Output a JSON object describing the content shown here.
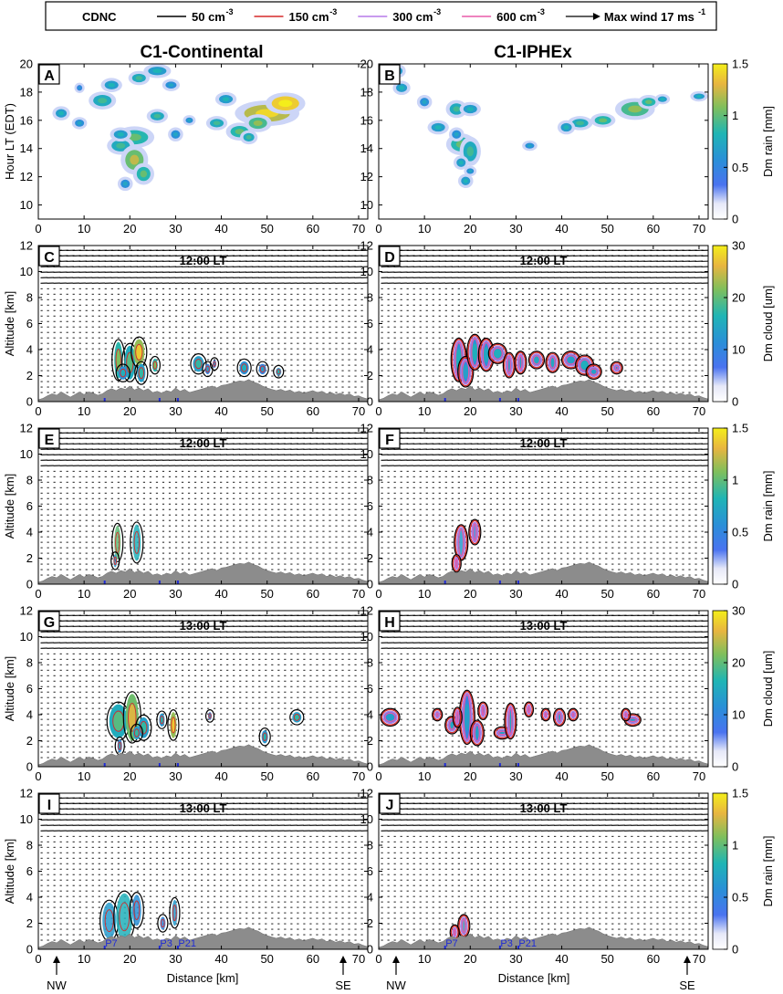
{
  "chart_data": {
    "type": "heatmap",
    "legend": {
      "title": "CDNC",
      "entries": [
        {
          "label": "50 cm",
          "exp": "-3",
          "color": "#000000"
        },
        {
          "label": "150 cm",
          "exp": "-3",
          "color": "#d62a2a"
        },
        {
          "label": "300 cm",
          "exp": "-3",
          "color": "#b57ae8"
        },
        {
          "label": "600 cm",
          "exp": "-3",
          "color": "#e85aa8"
        },
        {
          "label": "Max wind 17 ms",
          "exp": "-1",
          "color": "#000000"
        }
      ]
    },
    "column_titles": [
      "C1-Continental",
      "C1-IPHEx"
    ],
    "x_axis": {
      "label": "Distance [km]",
      "range": [
        0,
        72
      ],
      "ticks": [
        "0",
        "10",
        "20",
        "30",
        "40",
        "50",
        "60",
        "70"
      ]
    },
    "direction_labels": {
      "left": "NW",
      "right": "SE"
    },
    "sites": [
      {
        "name": "P7",
        "distance_km": 14.5
      },
      {
        "name": "P3",
        "distance_km": 26.5
      },
      {
        "name": "P21",
        "distance_km": 30.5
      }
    ],
    "panels": [
      {
        "letter": "A",
        "column": 0,
        "kind": "hovmoller",
        "ylabel": "Hour LT (EDT)",
        "yticks": [
          "10",
          "12",
          "14",
          "16",
          "18",
          "20"
        ],
        "ylim": [
          9,
          20
        ],
        "time": ""
      },
      {
        "letter": "B",
        "column": 1,
        "kind": "hovmoller",
        "ylabel": "",
        "yticks": [
          "10",
          "12",
          "14",
          "16",
          "18",
          "20"
        ],
        "ylim": [
          9,
          20
        ],
        "time": ""
      },
      {
        "letter": "C",
        "column": 0,
        "kind": "cloud",
        "ylabel": "Altitude [km]",
        "yticks": [
          "0",
          "2",
          "4",
          "6",
          "8",
          "10",
          "12"
        ],
        "ylim": [
          0,
          12
        ],
        "time": "12:00 LT"
      },
      {
        "letter": "D",
        "column": 1,
        "kind": "cloud",
        "ylabel": "",
        "yticks": [
          "0",
          "2",
          "4",
          "6",
          "8",
          "10",
          "12"
        ],
        "ylim": [
          0,
          12
        ],
        "time": "12:00 LT"
      },
      {
        "letter": "E",
        "column": 0,
        "kind": "rain",
        "ylabel": "Altitude [km]",
        "yticks": [
          "0",
          "2",
          "4",
          "6",
          "8",
          "10",
          "12"
        ],
        "ylim": [
          0,
          12
        ],
        "time": "12:00 LT"
      },
      {
        "letter": "F",
        "column": 1,
        "kind": "rain",
        "ylabel": "",
        "yticks": [
          "0",
          "2",
          "4",
          "6",
          "8",
          "10",
          "12"
        ],
        "ylim": [
          0,
          12
        ],
        "time": "12:00 LT"
      },
      {
        "letter": "G",
        "column": 0,
        "kind": "cloud",
        "ylabel": "Altitude [km]",
        "yticks": [
          "0",
          "2",
          "4",
          "6",
          "8",
          "10",
          "12"
        ],
        "ylim": [
          0,
          12
        ],
        "time": "13:00 LT"
      },
      {
        "letter": "H",
        "column": 1,
        "kind": "cloud",
        "ylabel": "",
        "yticks": [
          "0",
          "2",
          "4",
          "6",
          "8",
          "10",
          "12"
        ],
        "ylim": [
          0,
          12
        ],
        "time": "13:00 LT"
      },
      {
        "letter": "I",
        "column": 0,
        "kind": "rain",
        "ylabel": "Altitude [km]",
        "yticks": [
          "0",
          "2",
          "4",
          "6",
          "8",
          "10",
          "12"
        ],
        "ylim": [
          0,
          12
        ],
        "time": "13:00 LT"
      },
      {
        "letter": "J",
        "column": 1,
        "kind": "rain",
        "ylabel": "",
        "yticks": [
          "0",
          "2",
          "4",
          "6",
          "8",
          "10",
          "12"
        ],
        "ylim": [
          0,
          12
        ],
        "time": "13:00 LT"
      }
    ],
    "colorbars": [
      {
        "label": "Dm rain [mm]",
        "ticks": [
          "0",
          "0.5",
          "1",
          "1.5"
        ],
        "range": [
          0,
          1.5
        ]
      },
      {
        "label": "Dm cloud [um]",
        "ticks": [
          "0",
          "10",
          "20",
          "30"
        ],
        "range": [
          0,
          30
        ]
      },
      {
        "label": "Dm rain [mm]",
        "ticks": [
          "0",
          "0.5",
          "1",
          "1.5"
        ],
        "range": [
          0,
          1.5
        ]
      },
      {
        "label": "Dm cloud [um]",
        "ticks": [
          "0",
          "10",
          "20",
          "30"
        ],
        "range": [
          0,
          30
        ]
      },
      {
        "label": "Dm rain [mm]",
        "ticks": [
          "0",
          "0.5",
          "1",
          "1.5"
        ],
        "range": [
          0,
          1.5
        ]
      }
    ],
    "terrain_km": [
      0.15,
      0.25,
      0.45,
      0.6,
      0.5,
      0.75,
      0.55,
      0.35,
      0.55,
      0.75,
      0.55,
      0.75,
      0.65,
      0.5,
      0.6,
      0.85,
      1.0,
      0.85,
      1.05,
      0.95,
      1.2,
      0.9,
      1.05,
      0.85,
      1.0,
      0.7,
      0.8,
      0.65,
      0.85,
      0.75,
      1.05,
      0.8,
      0.95,
      0.7,
      0.8,
      0.9,
      1.0,
      1.1,
      1.2,
      1.05,
      1.25,
      1.3,
      1.4,
      1.5,
      1.6,
      1.55,
      1.7,
      1.5,
      1.4,
      1.2,
      1.05,
      0.95,
      0.85,
      0.95,
      0.8,
      0.9,
      0.7,
      0.8,
      0.65,
      0.75,
      0.85,
      0.7,
      0.8,
      0.6,
      0.7,
      0.55,
      0.65,
      0.5,
      0.6,
      0.4,
      0.45,
      0.3,
      0.2
    ],
    "features": {
      "A": [
        [
          5,
          16.5,
          1.2,
          0.3,
          0.4
        ],
        [
          9,
          15.8,
          1,
          0.25,
          0.3
        ],
        [
          14,
          17.4,
          2,
          0.4,
          0.5
        ],
        [
          16,
          18.5,
          1.5,
          0.3,
          0.4
        ],
        [
          22,
          19,
          1.5,
          0.3,
          0.5
        ],
        [
          26,
          19.5,
          2,
          0.3,
          0.4
        ],
        [
          29,
          18.5,
          1.2,
          0.25,
          0.3
        ],
        [
          21,
          14.8,
          3,
          0.5,
          0.6
        ],
        [
          18,
          14.2,
          2,
          0.4,
          0.5
        ],
        [
          21,
          13.2,
          2,
          0.7,
          0.8
        ],
        [
          23,
          12.2,
          1.5,
          0.5,
          0.6
        ],
        [
          19,
          11.5,
          1,
          0.3,
          0.3
        ],
        [
          18,
          15,
          1.5,
          0.3,
          0.4
        ],
        [
          26,
          16.3,
          1.5,
          0.3,
          0.5
        ],
        [
          30,
          15,
          1,
          0.3,
          0.3
        ],
        [
          39,
          15.8,
          1.5,
          0.3,
          0.5
        ],
        [
          44,
          15.2,
          2,
          0.4,
          0.6
        ],
        [
          50,
          16.5,
          5,
          0.6,
          1.0
        ],
        [
          54,
          17.2,
          3,
          0.5,
          1.2
        ],
        [
          48,
          15.8,
          2,
          0.4,
          0.7
        ],
        [
          41,
          17.5,
          1.5,
          0.3,
          0.4
        ],
        [
          46,
          14.8,
          1.2,
          0.3,
          0.5
        ],
        [
          33,
          16,
          0.8,
          0.2,
          0.3
        ],
        [
          9,
          18.3,
          0.6,
          0.2,
          0.2
        ]
      ],
      "B": [
        [
          4,
          19.5,
          1.2,
          0.3,
          0.4
        ],
        [
          5,
          18.3,
          1.2,
          0.3,
          0.4
        ],
        [
          10,
          17.3,
          1,
          0.3,
          0.3
        ],
        [
          13,
          15.5,
          1.5,
          0.3,
          0.4
        ],
        [
          17,
          16.8,
          1.5,
          0.4,
          0.5
        ],
        [
          20,
          16.8,
          1.5,
          0.3,
          0.4
        ],
        [
          18,
          14.3,
          2.2,
          0.5,
          0.6
        ],
        [
          20,
          13.8,
          1.5,
          0.7,
          0.5
        ],
        [
          18,
          13,
          1,
          0.3,
          0.4
        ],
        [
          20,
          12.4,
          0.8,
          0.2,
          0.3
        ],
        [
          19,
          11.7,
          1,
          0.3,
          0.4
        ],
        [
          17,
          15,
          1,
          0.3,
          0.3
        ],
        [
          33,
          14.2,
          1,
          0.2,
          0.3
        ],
        [
          44,
          15.8,
          1.8,
          0.3,
          0.5
        ],
        [
          49,
          16,
          1.8,
          0.3,
          0.6
        ],
        [
          56,
          16.8,
          3,
          0.5,
          0.7
        ],
        [
          59,
          17.3,
          1.5,
          0.3,
          0.6
        ],
        [
          62,
          17.5,
          1,
          0.2,
          0.4
        ],
        [
          70,
          17.7,
          1.2,
          0.2,
          0.4
        ],
        [
          41,
          15.5,
          1.2,
          0.3,
          0.4
        ]
      ],
      "C": [
        [
          17.5,
          3.2,
          0.9,
          1.4,
          14
        ],
        [
          20,
          3.0,
          1.2,
          1.3,
          12
        ],
        [
          22,
          3.8,
          1.2,
          1.0,
          20
        ],
        [
          22.5,
          2.2,
          0.9,
          0.7,
          10
        ],
        [
          18.5,
          2.2,
          1.0,
          0.5,
          8
        ],
        [
          25.5,
          2.8,
          0.6,
          0.5,
          14
        ],
        [
          35,
          2.9,
          1.2,
          0.6,
          10
        ],
        [
          37,
          2.5,
          0.6,
          0.4,
          6
        ],
        [
          45,
          2.6,
          1.0,
          0.5,
          8
        ],
        [
          49,
          2.5,
          0.8,
          0.4,
          6
        ],
        [
          52.5,
          2.3,
          0.6,
          0.3,
          9
        ],
        [
          38.5,
          2.9,
          0.4,
          0.3,
          5
        ]
      ],
      "D": [
        [
          17.5,
          3.2,
          1.2,
          1.5,
          8
        ],
        [
          19,
          2.3,
          1.2,
          1.0,
          6
        ],
        [
          21,
          3.8,
          1.2,
          1.2,
          8
        ],
        [
          23.5,
          3.6,
          1.2,
          1.1,
          7
        ],
        [
          26,
          3.7,
          1.5,
          0.6,
          8
        ],
        [
          28.5,
          2.8,
          0.8,
          0.8,
          6
        ],
        [
          31,
          3.0,
          0.8,
          0.7,
          6
        ],
        [
          34.5,
          3.2,
          1.2,
          0.5,
          7
        ],
        [
          38,
          3.0,
          1.0,
          0.6,
          7
        ],
        [
          42,
          3.2,
          1.5,
          0.5,
          6
        ],
        [
          45,
          2.8,
          1.5,
          0.6,
          8
        ],
        [
          47,
          2.3,
          1.2,
          0.4,
          6
        ],
        [
          52,
          2.6,
          0.8,
          0.3,
          5
        ]
      ],
      "E": [
        [
          17.3,
          3.2,
          0.7,
          1.3,
          1.0
        ],
        [
          21.5,
          3.2,
          0.9,
          1.4,
          0.7
        ],
        [
          16.8,
          1.8,
          0.4,
          0.5,
          0.5
        ]
      ],
      "F": [
        [
          18,
          3.2,
          1.0,
          1.2,
          0.5
        ],
        [
          21,
          4.0,
          0.8,
          0.8,
          0.3
        ],
        [
          17,
          1.6,
          0.5,
          0.5,
          0.4
        ]
      ],
      "G": [
        [
          17.5,
          3.5,
          2.0,
          1.3,
          12
        ],
        [
          20.5,
          3.8,
          1.4,
          1.8,
          18
        ],
        [
          23,
          3.0,
          1.2,
          0.8,
          10
        ],
        [
          29.5,
          3.2,
          0.7,
          1.0,
          20
        ],
        [
          27,
          3.6,
          0.6,
          0.5,
          9
        ],
        [
          17.8,
          1.6,
          0.5,
          0.5,
          7
        ],
        [
          21.5,
          2.6,
          0.8,
          0.5,
          10
        ],
        [
          37.5,
          3.9,
          0.4,
          0.3,
          6
        ],
        [
          49.5,
          2.3,
          0.7,
          0.5,
          9
        ],
        [
          56.5,
          3.8,
          1.0,
          0.4,
          10
        ]
      ],
      "H": [
        [
          2.5,
          3.8,
          1.6,
          0.5,
          6
        ],
        [
          12.8,
          4.0,
          0.6,
          0.3,
          6
        ],
        [
          16,
          3.2,
          1.0,
          0.5,
          7
        ],
        [
          19.3,
          3.8,
          1.2,
          1.9,
          6
        ],
        [
          17.2,
          3.8,
          0.5,
          0.6,
          5
        ],
        [
          21.5,
          2.6,
          1.0,
          0.8,
          6
        ],
        [
          22.8,
          4.3,
          0.6,
          0.5,
          5
        ],
        [
          27,
          2.6,
          1.3,
          0.3,
          6
        ],
        [
          28.8,
          3.5,
          0.8,
          1.2,
          7
        ],
        [
          32.8,
          4.4,
          0.5,
          0.4,
          5
        ],
        [
          36.5,
          4.0,
          0.5,
          0.3,
          5
        ],
        [
          39.5,
          3.8,
          0.8,
          0.5,
          6
        ],
        [
          42.5,
          4.0,
          0.6,
          0.3,
          5
        ],
        [
          55.5,
          3.6,
          1.3,
          0.3,
          6
        ],
        [
          54,
          4.0,
          0.5,
          0.3,
          5
        ]
      ],
      "I": [
        [
          15.5,
          2.2,
          1.5,
          1.4,
          0.5
        ],
        [
          18.8,
          2.5,
          1.8,
          1.8,
          0.7
        ],
        [
          21.5,
          3.0,
          1.0,
          1.2,
          0.4
        ],
        [
          27.2,
          2.0,
          0.6,
          0.5,
          0.3
        ],
        [
          29.8,
          2.8,
          0.6,
          1.0,
          0.5
        ]
      ],
      "J": [
        [
          18.6,
          1.8,
          0.8,
          0.7,
          0.6
        ],
        [
          16.6,
          1.3,
          0.5,
          0.4,
          0.5
        ]
      ]
    }
  }
}
